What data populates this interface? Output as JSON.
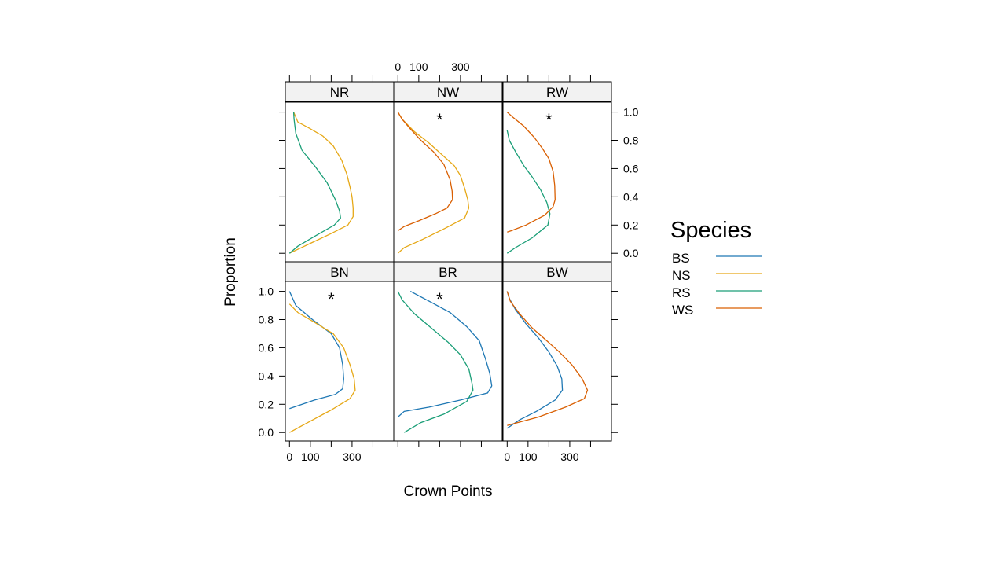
{
  "chart_data": {
    "type": "line",
    "xlabel": "Crown Points",
    "ylabel": "Proportion",
    "xlim": [
      -20,
      500
    ],
    "ylim": [
      -0.06,
      1.07
    ],
    "x_ticks": [
      0,
      100,
      200,
      300,
      400
    ],
    "x_tick_labels": [
      "0",
      "100",
      "300"
    ],
    "x_tick_labeled_values": [
      0,
      100,
      300
    ],
    "y_ticks": [
      0.0,
      0.2,
      0.4,
      0.6,
      0.8,
      1.0
    ],
    "y_tick_labels": [
      "0.0",
      "0.2",
      "0.4",
      "0.6",
      "0.8",
      "1.0"
    ],
    "legend": {
      "title": "Species",
      "position": "right",
      "entries": [
        {
          "name": "BS",
          "color": "#1f78b4"
        },
        {
          "name": "NS",
          "color": "#e6a817"
        },
        {
          "name": "RS",
          "color": "#1a9e77"
        },
        {
          "name": "WS",
          "color": "#d95f02"
        }
      ]
    },
    "panels": [
      {
        "label": "NR",
        "marker": "",
        "series": [
          {
            "name": "NS",
            "points": [
              [
                20,
                1.0
              ],
              [
                40,
                0.93
              ],
              [
                90,
                0.89
              ],
              [
                160,
                0.83
              ],
              [
                210,
                0.76
              ],
              [
                250,
                0.66
              ],
              [
                275,
                0.56
              ],
              [
                290,
                0.47
              ],
              [
                300,
                0.4
              ],
              [
                305,
                0.32
              ],
              [
                305,
                0.26
              ],
              [
                280,
                0.2
              ],
              [
                200,
                0.14
              ],
              [
                100,
                0.07
              ],
              [
                0,
                0.0
              ]
            ]
          },
          {
            "name": "RS",
            "points": [
              [
                20,
                1.0
              ],
              [
                22,
                0.95
              ],
              [
                30,
                0.85
              ],
              [
                60,
                0.73
              ],
              [
                120,
                0.62
              ],
              [
                180,
                0.5
              ],
              [
                220,
                0.38
              ],
              [
                240,
                0.3
              ],
              [
                245,
                0.25
              ],
              [
                215,
                0.2
              ],
              [
                120,
                0.12
              ],
              [
                40,
                0.05
              ],
              [
                0,
                0.0
              ]
            ]
          }
        ]
      },
      {
        "label": "NW",
        "marker": "*",
        "series": [
          {
            "name": "NS",
            "points": [
              [
                0,
                1.0
              ],
              [
                20,
                0.95
              ],
              [
                80,
                0.86
              ],
              [
                150,
                0.78
              ],
              [
                210,
                0.7
              ],
              [
                270,
                0.62
              ],
              [
                300,
                0.55
              ],
              [
                320,
                0.46
              ],
              [
                335,
                0.38
              ],
              [
                340,
                0.32
              ],
              [
                320,
                0.25
              ],
              [
                230,
                0.18
              ],
              [
                120,
                0.1
              ],
              [
                30,
                0.04
              ],
              [
                0,
                0.0
              ]
            ]
          },
          {
            "name": "WS",
            "points": [
              [
                0,
                1.0
              ],
              [
                20,
                0.95
              ],
              [
                60,
                0.88
              ],
              [
                110,
                0.8
              ],
              [
                170,
                0.72
              ],
              [
                220,
                0.63
              ],
              [
                250,
                0.52
              ],
              [
                260,
                0.44
              ],
              [
                262,
                0.38
              ],
              [
                235,
                0.32
              ],
              [
                180,
                0.28
              ],
              [
                100,
                0.23
              ],
              [
                30,
                0.19
              ],
              [
                0,
                0.16
              ]
            ]
          }
        ]
      },
      {
        "label": "RW",
        "marker": "*",
        "series": [
          {
            "name": "WS",
            "points": [
              [
                0,
                1.0
              ],
              [
                30,
                0.96
              ],
              [
                80,
                0.9
              ],
              [
                130,
                0.82
              ],
              [
                170,
                0.74
              ],
              [
                200,
                0.67
              ],
              [
                220,
                0.58
              ],
              [
                228,
                0.48
              ],
              [
                230,
                0.38
              ],
              [
                220,
                0.33
              ],
              [
                180,
                0.27
              ],
              [
                90,
                0.2
              ],
              [
                20,
                0.16
              ],
              [
                0,
                0.15
              ]
            ]
          },
          {
            "name": "RS",
            "points": [
              [
                0,
                0.87
              ],
              [
                10,
                0.8
              ],
              [
                40,
                0.72
              ],
              [
                80,
                0.62
              ],
              [
                120,
                0.54
              ],
              [
                160,
                0.45
              ],
              [
                190,
                0.36
              ],
              [
                205,
                0.28
              ],
              [
                195,
                0.2
              ],
              [
                120,
                0.11
              ],
              [
                40,
                0.04
              ],
              [
                0,
                0.0
              ]
            ]
          }
        ]
      },
      {
        "label": "BN",
        "marker": "*",
        "series": [
          {
            "name": "BS",
            "points": [
              [
                0,
                1.0
              ],
              [
                30,
                0.9
              ],
              [
                110,
                0.8
              ],
              [
                200,
                0.7
              ],
              [
                240,
                0.6
              ],
              [
                255,
                0.48
              ],
              [
                260,
                0.38
              ],
              [
                255,
                0.31
              ],
              [
                220,
                0.27
              ],
              [
                120,
                0.23
              ],
              [
                40,
                0.19
              ],
              [
                0,
                0.17
              ]
            ]
          },
          {
            "name": "NS",
            "points": [
              [
                0,
                0.91
              ],
              [
                40,
                0.85
              ],
              [
                120,
                0.78
              ],
              [
                210,
                0.7
              ],
              [
                260,
                0.6
              ],
              [
                290,
                0.48
              ],
              [
                310,
                0.38
              ],
              [
                315,
                0.3
              ],
              [
                290,
                0.24
              ],
              [
                200,
                0.16
              ],
              [
                100,
                0.08
              ],
              [
                0,
                0.0
              ]
            ]
          }
        ]
      },
      {
        "label": "BR",
        "marker": "*",
        "series": [
          {
            "name": "BS",
            "points": [
              [
                60,
                1.0
              ],
              [
                150,
                0.93
              ],
              [
                250,
                0.85
              ],
              [
                330,
                0.75
              ],
              [
                390,
                0.65
              ],
              [
                420,
                0.52
              ],
              [
                440,
                0.42
              ],
              [
                450,
                0.33
              ],
              [
                430,
                0.28
              ],
              [
                300,
                0.23
              ],
              [
                150,
                0.18
              ],
              [
                30,
                0.15
              ],
              [
                0,
                0.11
              ]
            ]
          },
          {
            "name": "RS",
            "points": [
              [
                0,
                1.0
              ],
              [
                20,
                0.94
              ],
              [
                80,
                0.84
              ],
              [
                160,
                0.74
              ],
              [
                240,
                0.64
              ],
              [
                300,
                0.55
              ],
              [
                340,
                0.45
              ],
              [
                355,
                0.35
              ],
              [
                360,
                0.3
              ],
              [
                330,
                0.22
              ],
              [
                220,
                0.13
              ],
              [
                110,
                0.07
              ],
              [
                30,
                0.0
              ]
            ]
          }
        ]
      },
      {
        "label": "BW",
        "marker": "",
        "series": [
          {
            "name": "BS",
            "points": [
              [
                0,
                1.0
              ],
              [
                10,
                0.95
              ],
              [
                40,
                0.87
              ],
              [
                90,
                0.77
              ],
              [
                150,
                0.67
              ],
              [
                200,
                0.57
              ],
              [
                240,
                0.47
              ],
              [
                262,
                0.38
              ],
              [
                265,
                0.3
              ],
              [
                230,
                0.23
              ],
              [
                140,
                0.15
              ],
              [
                60,
                0.09
              ],
              [
                0,
                0.03
              ]
            ]
          },
          {
            "name": "WS",
            "points": [
              [
                0,
                1.0
              ],
              [
                15,
                0.93
              ],
              [
                60,
                0.84
              ],
              [
                120,
                0.74
              ],
              [
                190,
                0.65
              ],
              [
                250,
                0.57
              ],
              [
                310,
                0.48
              ],
              [
                360,
                0.38
              ],
              [
                385,
                0.3
              ],
              [
                370,
                0.24
              ],
              [
                280,
                0.18
              ],
              [
                150,
                0.11
              ],
              [
                50,
                0.07
              ],
              [
                0,
                0.05
              ]
            ]
          }
        ]
      }
    ]
  }
}
